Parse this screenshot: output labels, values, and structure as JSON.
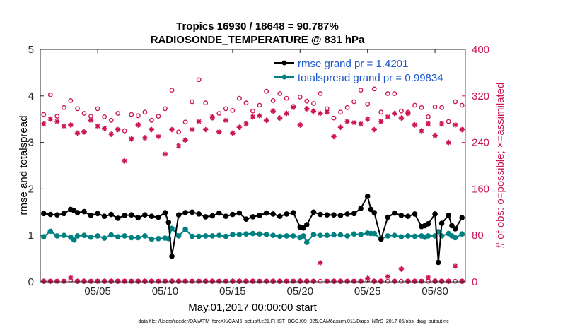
{
  "chart_data": {
    "type": "line",
    "title_line1": "Tropics 16930 / 18648 = 90.787%",
    "title_line2": "RADIOSONDE_TEMPERATURE @ 831 hPa",
    "xlabel": "May.01,2017 00:00:00 start",
    "ylabel_left": "rmse and totalspread",
    "ylabel_right": "# of obs: o=possible; ×=assimilated",
    "footnote": "data file: /Users/raeder/DAI/ATM_forcXX/CAM6_setup/f.e21.FHIST_BGC.f09_025.CAM6assim.011/Diags_NTrS_2017-05/obs_diag_output.nc",
    "xlim": [
      0.75,
      32.25
    ],
    "ylim_left": [
      0,
      5
    ],
    "ylim_right": [
      0,
      400
    ],
    "yticks_left": [
      0,
      1,
      2,
      3,
      4,
      5
    ],
    "yticks_right": [
      0,
      80,
      160,
      240,
      320,
      400
    ],
    "xticks": [
      {
        "day": 5,
        "label": "05/05"
      },
      {
        "day": 10,
        "label": "05/10"
      },
      {
        "day": 15,
        "label": "05/15"
      },
      {
        "day": 20,
        "label": "05/20"
      },
      {
        "day": 25,
        "label": "05/25"
      },
      {
        "day": 30,
        "label": "05/30"
      }
    ],
    "colors": {
      "rmse": "#000000",
      "spread": "#008080",
      "obs": "#cc1557",
      "legend_text": "#1a56cc"
    },
    "series": [
      {
        "name": "rmse",
        "legend": "rmse grand pr = 1.4201",
        "x": [
          1,
          1.5,
          2,
          2.5,
          3,
          3.25,
          3.5,
          4,
          4.5,
          5,
          5.5,
          6,
          6.5,
          7,
          7.5,
          8,
          8.5,
          9,
          9.5,
          10,
          10.25,
          10.5,
          11,
          11.5,
          12,
          12.5,
          13,
          13.5,
          14,
          14.5,
          15,
          15.5,
          16,
          16.5,
          17,
          17.5,
          18,
          18.5,
          19,
          19.5,
          20,
          20.25,
          20.5,
          21,
          21.5,
          22,
          22.5,
          23,
          23.5,
          24,
          24.5,
          25,
          25.25,
          25.5,
          26,
          26.5,
          27,
          27.5,
          28,
          28.5,
          29,
          29.25,
          29.5,
          30,
          30.25,
          30.5,
          31,
          31.25,
          31.5,
          32
        ],
        "y": [
          1.47,
          1.45,
          1.44,
          1.47,
          1.56,
          1.53,
          1.49,
          1.51,
          1.43,
          1.47,
          1.41,
          1.45,
          1.37,
          1.43,
          1.44,
          1.38,
          1.44,
          1.41,
          1.39,
          1.49,
          1.28,
          0.55,
          1.44,
          1.49,
          1.5,
          1.46,
          1.4,
          1.42,
          1.48,
          1.41,
          1.45,
          1.48,
          1.35,
          1.4,
          1.43,
          1.48,
          1.46,
          1.41,
          1.46,
          1.49,
          1.18,
          1.16,
          1.23,
          1.5,
          1.45,
          1.44,
          1.44,
          1.43,
          1.46,
          1.47,
          1.58,
          1.84,
          1.56,
          1.49,
          0.92,
          1.39,
          1.48,
          1.43,
          1.41,
          1.46,
          1.19,
          1.21,
          1.25,
          1.46,
          0.42,
          1.26,
          1.43,
          1.21,
          1.14,
          1.38
        ]
      },
      {
        "name": "totalspread",
        "legend": "totalspread grand pr = 0.99834",
        "x": [
          1,
          1.5,
          2,
          2.5,
          3,
          3.25,
          3.5,
          4,
          4.5,
          5,
          5.5,
          6,
          6.5,
          7,
          7.5,
          8,
          8.5,
          9,
          9.5,
          10,
          10.25,
          10.5,
          11,
          11.5,
          12,
          12.5,
          13,
          13.5,
          14,
          14.5,
          15,
          15.5,
          16,
          16.5,
          17,
          17.5,
          18,
          18.5,
          19,
          19.5,
          20,
          20.25,
          20.5,
          21,
          21.5,
          22,
          22.5,
          23,
          23.5,
          24,
          24.5,
          25,
          25.25,
          25.5,
          26,
          26.5,
          27,
          27.5,
          28,
          28.5,
          29,
          29.25,
          29.5,
          30,
          30.25,
          30.5,
          31,
          31.25,
          31.5,
          32
        ],
        "y": [
          0.97,
          1.09,
          0.99,
          1.0,
          0.96,
          0.9,
          0.99,
          1.0,
          0.96,
          0.99,
          0.94,
          1.01,
          0.97,
          0.99,
          0.95,
          0.95,
          0.99,
          0.92,
          0.93,
          0.94,
          0.93,
          1.15,
          0.99,
          1.13,
          0.98,
          0.98,
          0.99,
          0.99,
          1.0,
          0.98,
          1.02,
          1.02,
          1.03,
          1.04,
          1.03,
          1.02,
          1.0,
          0.98,
          0.99,
          0.99,
          0.95,
          0.99,
          0.85,
          1.02,
          1.0,
          1.0,
          1.01,
          1.01,
          0.99,
          1.03,
          1.02,
          1.05,
          1.04,
          1.04,
          0.92,
          0.99,
          1.0,
          0.97,
          0.99,
          0.98,
          0.99,
          0.96,
          0.99,
          0.99,
          1.08,
          0.99,
          1.04,
          0.99,
          0.95,
          1.03
        ]
      },
      {
        "name": "possible",
        "marker": "circle",
        "x": [
          1,
          1.5,
          2,
          2.5,
          3,
          3.5,
          4,
          4.5,
          5,
          5.5,
          6,
          6.5,
          7,
          7.5,
          8,
          8.5,
          9,
          9.5,
          10,
          10.5,
          11,
          11.5,
          12,
          12.5,
          13,
          13.5,
          14,
          14.5,
          15,
          15.5,
          16,
          16.5,
          17,
          17.5,
          18,
          18.5,
          19,
          19.5,
          20,
          20.5,
          21,
          21.5,
          22,
          22.5,
          23,
          23.5,
          24,
          24.5,
          25,
          25.5,
          26,
          26.5,
          27,
          27.5,
          28,
          28.5,
          29,
          29.5,
          30,
          30.5,
          31,
          31.5,
          32
        ],
        "y": [
          288,
          322,
          285,
          300,
          312,
          298,
          290,
          285,
          298,
          284,
          278,
          290,
          260,
          288,
          286,
          292,
          278,
          285,
          298,
          330,
          258,
          275,
          310,
          348,
          308,
          282,
          290,
          298,
          295,
          316,
          308,
          294,
          304,
          328,
          312,
          324,
          316,
          302,
          318,
          311,
          307,
          324,
          298,
          282,
          292,
          300,
          310,
          330,
          306,
          332,
          292,
          324,
          324,
          294,
          292,
          304,
          300,
          284,
          301,
          300,
          276,
          310,
          304
        ]
      },
      {
        "name": "assimilated",
        "marker": "asterisk",
        "x": [
          1,
          1.5,
          2,
          2.5,
          3,
          3.5,
          4,
          4.5,
          5,
          5.5,
          6,
          6.5,
          7,
          7.5,
          8,
          8.5,
          9,
          9.5,
          10,
          10.5,
          11,
          11.5,
          12,
          12.5,
          13,
          13.5,
          14,
          14.5,
          15,
          15.5,
          16,
          16.5,
          17,
          17.5,
          18,
          18.5,
          19,
          19.5,
          20,
          20.5,
          21,
          21.5,
          22,
          22.5,
          23,
          23.5,
          24,
          24.5,
          25,
          25.5,
          26,
          26.5,
          27,
          27.5,
          28,
          28.5,
          29,
          29.5,
          30,
          30.5,
          31,
          31.5,
          32
        ],
        "y": [
          272,
          280,
          276,
          268,
          270,
          256,
          258,
          278,
          268,
          264,
          254,
          262,
          208,
          246,
          270,
          248,
          262,
          250,
          220,
          262,
          234,
          244,
          262,
          276,
          262,
          284,
          258,
          278,
          256,
          266,
          272,
          284,
          286,
          278,
          294,
          282,
          290,
          300,
          270,
          298,
          294,
          290,
          292,
          250,
          266,
          276,
          274,
          272,
          280,
          262,
          276,
          284,
          290,
          282,
          290,
          270,
          260,
          272,
          252,
          272,
          240,
          270,
          262
        ]
      },
      {
        "name": "possible_low",
        "marker": "circle",
        "x": [
          1,
          1.5,
          2,
          2.5,
          3,
          3.5,
          4,
          4.5,
          5,
          5.5,
          6,
          6.5,
          7,
          7.5,
          8,
          8.5,
          9,
          9.5,
          10,
          10.5,
          11,
          11.5,
          12,
          12.5,
          13,
          13.5,
          14,
          14.5,
          15,
          15.5,
          16,
          16.5,
          17,
          17.5,
          18,
          18.5,
          19,
          19.5,
          20,
          20.5,
          21,
          21.5,
          22,
          22.5,
          23,
          23.5,
          24,
          24.5,
          25,
          25.5,
          26,
          26.5,
          27,
          27.5,
          28,
          28.5,
          29,
          29.5,
          30,
          30.5,
          31,
          31.5,
          32
        ],
        "y": [
          1,
          1,
          1,
          1,
          3,
          1,
          1,
          1,
          1,
          1,
          1,
          1,
          1,
          1,
          1,
          1,
          1,
          1,
          1,
          1,
          1,
          1,
          1,
          1,
          1,
          1,
          1,
          1,
          1,
          1,
          1,
          1,
          1,
          1,
          1,
          1,
          1,
          1,
          1,
          1,
          1,
          1,
          1,
          1,
          1,
          1,
          1,
          1,
          3,
          1,
          1,
          1,
          1,
          1,
          1,
          1,
          1,
          1,
          1,
          1,
          1,
          1,
          1
        ]
      },
      {
        "name": "assimilated_low",
        "marker": "asterisk",
        "x": [
          1,
          1.5,
          2,
          2.5,
          3,
          3.5,
          4,
          4.5,
          5,
          5.5,
          6,
          6.5,
          7,
          7.5,
          8,
          8.5,
          9,
          9.5,
          10,
          10.5,
          11,
          11.5,
          12,
          12.5,
          13,
          13.5,
          14,
          14.5,
          15,
          15.5,
          16,
          16.5,
          17,
          17.5,
          18,
          18.5,
          19,
          19.5,
          20,
          20.5,
          21,
          21.5,
          22,
          22.5,
          23,
          23.5,
          24,
          24.5,
          25,
          25.5,
          26,
          26.5,
          27,
          27.5,
          28,
          28.5,
          29,
          29.5,
          30,
          30.5,
          31,
          31.5,
          32
        ],
        "y": [
          1,
          1,
          1,
          1,
          7,
          1,
          1,
          1,
          1,
          1,
          1,
          1,
          1,
          1,
          1,
          1,
          1,
          1,
          1,
          1,
          1,
          1,
          1,
          1,
          1,
          1,
          1,
          1,
          1,
          1,
          1,
          1,
          1,
          1,
          1,
          1,
          1,
          1,
          1,
          1,
          1,
          33,
          1,
          1,
          1,
          1,
          1,
          1,
          6,
          1,
          1,
          9,
          1,
          22,
          1,
          1,
          1,
          7,
          1,
          1,
          1,
          27,
          1
        ]
      }
    ]
  }
}
